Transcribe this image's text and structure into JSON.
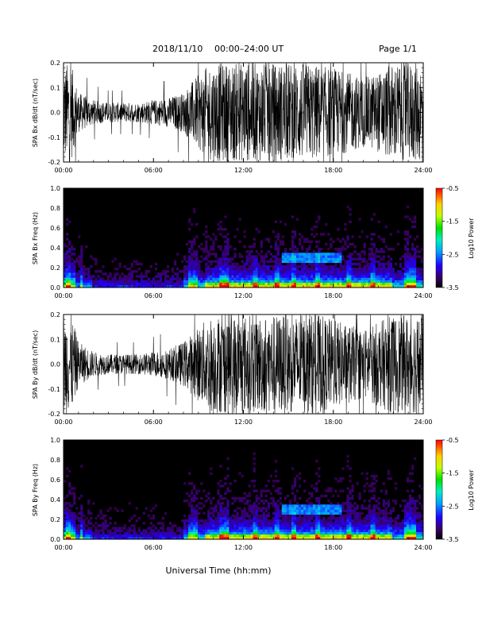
{
  "header": {
    "date": "2018/11/10",
    "range": "00:00–24:00 UT",
    "page": "Page 1/1"
  },
  "xlabel": "Universal Time (hh:mm)",
  "chart_data": [
    {
      "type": "line",
      "id": "bx-line",
      "ylabel": "SPA Bx dB/dt (nT/sec)",
      "xlim": [
        0,
        24
      ],
      "ylim": [
        -0.2,
        0.2
      ],
      "x_ticks": [
        "00:00",
        "06:00",
        "12:00",
        "18:00",
        "24:00"
      ],
      "y_ticks": [
        "-0.2",
        "-0.1",
        "0.0",
        "0.1",
        "0.2"
      ],
      "amplitude_profile": {
        "hours": [
          0,
          0.5,
          1,
          2,
          3,
          4,
          5,
          6,
          7,
          8,
          8.5,
          9,
          9.5,
          10,
          11,
          12,
          13,
          14,
          15,
          16,
          17,
          18,
          19,
          20,
          21,
          22,
          22.5,
          23,
          24
        ],
        "amplitude": [
          0.2,
          0.2,
          0.08,
          0.05,
          0.04,
          0.04,
          0.04,
          0.05,
          0.06,
          0.08,
          0.12,
          0.15,
          0.18,
          0.2,
          0.2,
          0.2,
          0.2,
          0.2,
          0.2,
          0.2,
          0.19,
          0.18,
          0.16,
          0.14,
          0.16,
          0.2,
          0.2,
          0.2,
          0.2
        ]
      }
    },
    {
      "type": "heatmap",
      "id": "bx-spec",
      "ylabel": "SPA Bx Freq (Hz)",
      "xlim": [
        0,
        24
      ],
      "ylim": [
        0,
        1.0
      ],
      "x_ticks": [
        "00:00",
        "06:00",
        "12:00",
        "18:00",
        "24:00"
      ],
      "y_ticks": [
        "0.0",
        "0.2",
        "0.4",
        "0.6",
        "0.8",
        "1.0"
      ],
      "colorbar": {
        "label": "Log10 Power",
        "range": [
          -3.5,
          -0.5
        ],
        "ticks": [
          "-0.5",
          "-1.5",
          "-2.5",
          "-3.5"
        ]
      }
    },
    {
      "type": "line",
      "id": "by-line",
      "ylabel": "SPA By dB/dt (nT/sec)",
      "xlim": [
        0,
        24
      ],
      "ylim": [
        -0.2,
        0.2
      ],
      "x_ticks": [
        "00:00",
        "06:00",
        "12:00",
        "18:00",
        "24:00"
      ],
      "y_ticks": [
        "-0.2",
        "-0.1",
        "0.0",
        "0.1",
        "0.2"
      ],
      "amplitude_profile": {
        "hours": [
          0,
          0.5,
          1,
          2,
          3,
          4,
          5,
          6,
          7,
          8,
          8.5,
          9,
          9.5,
          10,
          11,
          12,
          13,
          14,
          15,
          16,
          17,
          18,
          19,
          20,
          21,
          22,
          22.5,
          23,
          24
        ],
        "amplitude": [
          0.2,
          0.2,
          0.09,
          0.05,
          0.04,
          0.04,
          0.04,
          0.05,
          0.06,
          0.09,
          0.12,
          0.15,
          0.18,
          0.2,
          0.2,
          0.2,
          0.2,
          0.2,
          0.2,
          0.2,
          0.2,
          0.18,
          0.16,
          0.14,
          0.17,
          0.2,
          0.2,
          0.2,
          0.2
        ]
      }
    },
    {
      "type": "heatmap",
      "id": "by-spec",
      "ylabel": "SPA By Freq (Hz)",
      "xlim": [
        0,
        24
      ],
      "ylim": [
        0,
        1.0
      ],
      "x_ticks": [
        "00:00",
        "06:00",
        "12:00",
        "18:00",
        "24:00"
      ],
      "y_ticks": [
        "0.0",
        "0.2",
        "0.4",
        "0.6",
        "0.8",
        "1.0"
      ],
      "colorbar": {
        "label": "Log10 Power",
        "range": [
          -3.5,
          -0.5
        ],
        "ticks": [
          "-0.5",
          "-1.5",
          "-2.5",
          "-3.5"
        ]
      }
    }
  ]
}
